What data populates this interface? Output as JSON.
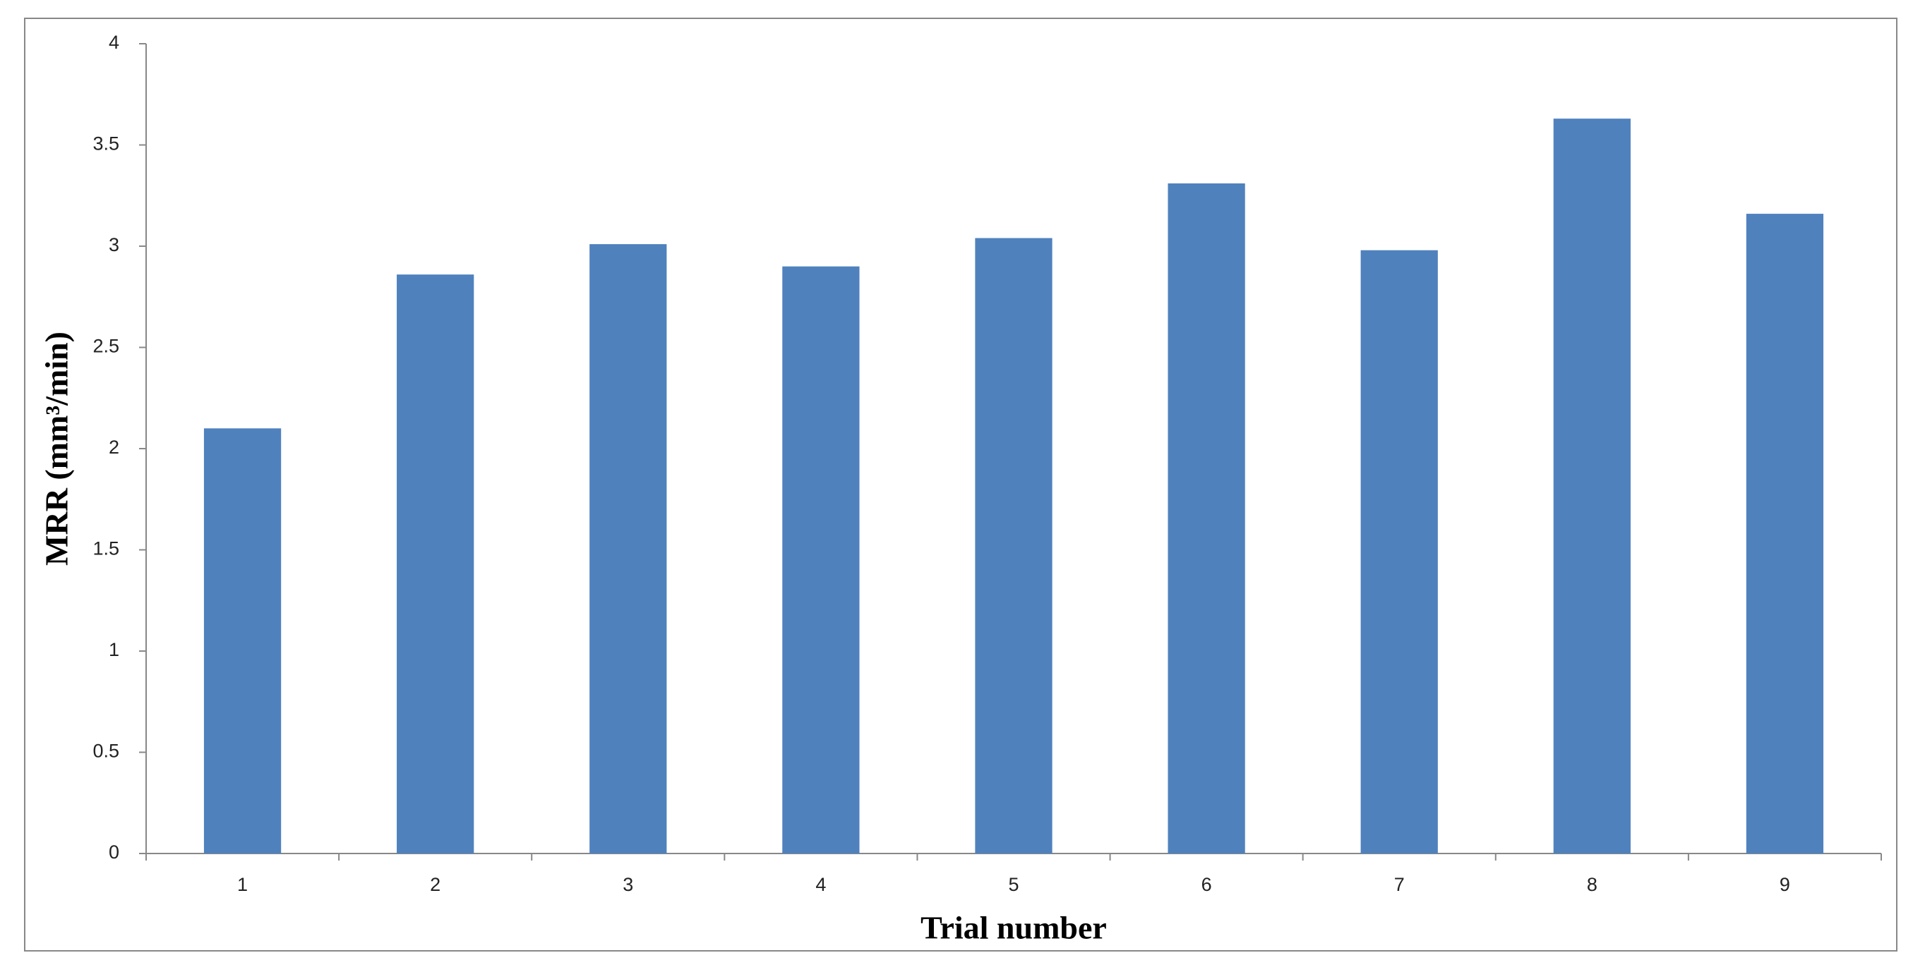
{
  "chart_data": {
    "type": "bar",
    "xlabel": "Trial number",
    "ylabel": "MRR (mm³/min)",
    "categories": [
      "1",
      "2",
      "3",
      "4",
      "5",
      "6",
      "7",
      "8",
      "9"
    ],
    "values": [
      2.1,
      2.86,
      3.01,
      2.9,
      3.04,
      3.31,
      2.98,
      3.63,
      3.16
    ],
    "color": "#4f81bd",
    "ylim": [
      0,
      4
    ],
    "yticks": [
      0,
      0.5,
      1,
      1.5,
      2,
      2.5,
      3,
      3.5,
      4
    ],
    "grid": false
  }
}
